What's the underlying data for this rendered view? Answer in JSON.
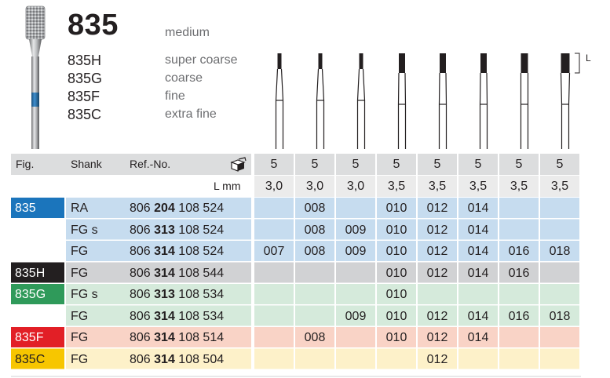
{
  "model": "835",
  "model_grit": "medium",
  "grits": [
    {
      "code": "835H",
      "name": "super coarse"
    },
    {
      "code": "835G",
      "name": "coarse"
    },
    {
      "code": "835F",
      "name": "fine"
    },
    {
      "code": "835C",
      "name": "extra fine"
    }
  ],
  "dimension_label": "L",
  "headers": {
    "fig": "Fig.",
    "shank": "Shank",
    "ref": "Ref.-No.",
    "lmm": "L mm"
  },
  "sizes_row": [
    "5",
    "5",
    "5",
    "5",
    "5",
    "5",
    "5",
    "5"
  ],
  "lengths_row": [
    "3,0",
    "3,0",
    "3,0",
    "3,5",
    "3,5",
    "3,5",
    "3,5",
    "3,5"
  ],
  "rows": [
    {
      "fig": "835",
      "shank": "RA",
      "ref_pre": "806 ",
      "ref_bold": "204",
      "ref_post": " 108 524",
      "sizes": [
        "",
        "008",
        "",
        "010",
        "012",
        "014",
        "",
        ""
      ]
    },
    {
      "fig": "",
      "shank": "FG s",
      "ref_pre": "806 ",
      "ref_bold": "313",
      "ref_post": " 108 524",
      "sizes": [
        "",
        "008",
        "009",
        "010",
        "012",
        "014",
        "",
        ""
      ]
    },
    {
      "fig": "",
      "shank": "FG",
      "ref_pre": "806 ",
      "ref_bold": "314",
      "ref_post": " 108 524",
      "sizes": [
        "007",
        "008",
        "009",
        "010",
        "012",
        "014",
        "016",
        "018"
      ]
    },
    {
      "fig": "835H",
      "shank": "FG",
      "ref_pre": "806 ",
      "ref_bold": "314",
      "ref_post": " 108 544",
      "sizes": [
        "",
        "",
        "",
        "010",
        "012",
        "014",
        "016",
        ""
      ]
    },
    {
      "fig": "835G",
      "shank": "FG s",
      "ref_pre": "806 ",
      "ref_bold": "313",
      "ref_post": " 108 534",
      "sizes": [
        "",
        "",
        "",
        "010",
        "",
        "",
        "",
        ""
      ]
    },
    {
      "fig": "",
      "shank": "FG",
      "ref_pre": "806 ",
      "ref_bold": "314",
      "ref_post": " 108 534",
      "sizes": [
        "",
        "",
        "009",
        "010",
        "012",
        "014",
        "016",
        "018"
      ]
    },
    {
      "fig": "835F",
      "shank": "FG",
      "ref_pre": "806 ",
      "ref_bold": "314",
      "ref_post": " 108 514",
      "sizes": [
        "",
        "008",
        "",
        "010",
        "012",
        "014",
        "",
        ""
      ]
    },
    {
      "fig": "835C",
      "shank": "FG",
      "ref_pre": "806 ",
      "ref_bold": "314",
      "ref_post": " 108 504",
      "sizes": [
        "",
        "",
        "",
        "",
        "012",
        "",
        "",
        ""
      ]
    }
  ],
  "colors": {
    "header_bg": "#dcddde",
    "lmm_bg": "#ebebeb",
    "blue_bg": "#c6dcef",
    "blue_tag": "#1b75bc",
    "grey_bg": "#d1d2d4",
    "black_tag": "#231f20",
    "green_bg": "#d5eadb",
    "green_tag": "#2f9a5a",
    "red_bg": "#f9d3c6",
    "red_tag": "#e21f26",
    "yellow_bg": "#fdf1c9",
    "yellow_tag": "#f7c600"
  }
}
